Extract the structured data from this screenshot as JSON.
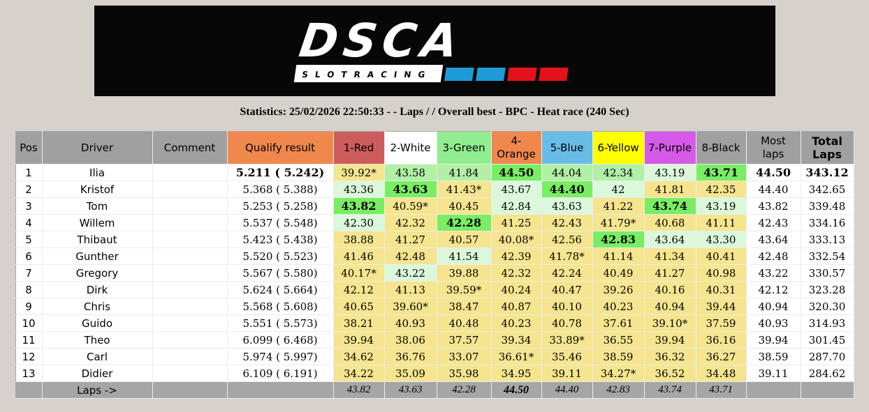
{
  "banner": {
    "logo_text": "DSCA",
    "logo_subtext": "SLOTRACING",
    "accent_blocks": [
      "#1e9cd7",
      "#1e9cd7",
      "#e31119",
      "#e31119"
    ]
  },
  "statistics_line": "Statistics: 25/02/2026 22:50:33 - - Laps / / Overall best - BPC - Heat race (240 Sec)",
  "colors": {
    "k": "#f5e58f",
    "p": "#dcf8da",
    "m": "#b2f0a6",
    "g": "#79ee63",
    "header_gray": "#a0a0a0",
    "footer_gray": "#a6a6a6",
    "qualify_orange": "#f0884e"
  },
  "table": {
    "static_headers": {
      "pos": [
        "Pos"
      ],
      "driver": [
        "Driver"
      ],
      "comment": [
        "Comment"
      ],
      "qualify": [
        "Qualify result"
      ],
      "most_laps": [
        "Most",
        "laps"
      ],
      "total_laps": [
        "Total",
        "Laps"
      ]
    },
    "heat_columns": [
      {
        "label_lines": [
          "1-Red"
        ],
        "color": "#cd5c5c"
      },
      {
        "label_lines": [
          "2-White"
        ],
        "color": "#ffffff"
      },
      {
        "label_lines": [
          "3-Green"
        ],
        "color": "#90ee90"
      },
      {
        "label_lines": [
          "4-",
          "Orange"
        ],
        "color": "#f0884e"
      },
      {
        "label_lines": [
          "5-Blue"
        ],
        "color": "#68bde8"
      },
      {
        "label_lines": [
          "6-Yellow"
        ],
        "color": "#ffff00"
      },
      {
        "label_lines": [
          "7-Purple"
        ],
        "color": "#d65ae8"
      },
      {
        "label_lines": [
          "8-Black"
        ],
        "color": "#a0a0a0"
      }
    ],
    "rows": [
      {
        "pos": "1",
        "driver": "Ilia",
        "comment": "",
        "qualify": "5.211 ( 5.242)",
        "bold": true,
        "heats": [
          {
            "v": "39.92*",
            "c": "k"
          },
          {
            "v": "43.58",
            "c": "m"
          },
          {
            "v": "41.84",
            "c": "m"
          },
          {
            "v": "44.50",
            "c": "g"
          },
          {
            "v": "44.04",
            "c": "m"
          },
          {
            "v": "42.34",
            "c": "m"
          },
          {
            "v": "43.19",
            "c": "p"
          },
          {
            "v": "43.71",
            "c": "g"
          }
        ],
        "most": "44.50",
        "total": "343.12"
      },
      {
        "pos": "2",
        "driver": "Kristof",
        "comment": "",
        "qualify": "5.368 ( 5.388)",
        "bold": false,
        "heats": [
          {
            "v": "43.36",
            "c": "p"
          },
          {
            "v": "43.63",
            "c": "g"
          },
          {
            "v": "41.43*",
            "c": "k"
          },
          {
            "v": "43.67",
            "c": "p"
          },
          {
            "v": "44.40",
            "c": "g"
          },
          {
            "v": "42",
            "c": "p"
          },
          {
            "v": "41.81",
            "c": "k"
          },
          {
            "v": "42.35",
            "c": "k"
          }
        ],
        "most": "44.40",
        "total": "342.65"
      },
      {
        "pos": "3",
        "driver": "Tom",
        "comment": "",
        "qualify": "5.253 ( 5.258)",
        "bold": false,
        "heats": [
          {
            "v": "43.82",
            "c": "g"
          },
          {
            "v": "40.59*",
            "c": "k"
          },
          {
            "v": "40.45",
            "c": "k"
          },
          {
            "v": "42.84",
            "c": "p"
          },
          {
            "v": "43.63",
            "c": "p"
          },
          {
            "v": "41.22",
            "c": "k"
          },
          {
            "v": "43.74",
            "c": "g"
          },
          {
            "v": "43.19",
            "c": "p"
          }
        ],
        "most": "43.82",
        "total": "339.48"
      },
      {
        "pos": "4",
        "driver": "Willem",
        "comment": "",
        "qualify": "5.537 ( 5.548)",
        "bold": false,
        "heats": [
          {
            "v": "42.30",
            "c": "p"
          },
          {
            "v": "42.32",
            "c": "k"
          },
          {
            "v": "42.28",
            "c": "g"
          },
          {
            "v": "41.25",
            "c": "k"
          },
          {
            "v": "42.43",
            "c": "k"
          },
          {
            "v": "41.79*",
            "c": "k"
          },
          {
            "v": "40.68",
            "c": "k"
          },
          {
            "v": "41.11",
            "c": "k"
          }
        ],
        "most": "42.43",
        "total": "334.16"
      },
      {
        "pos": "5",
        "driver": "Thibaut",
        "comment": "",
        "qualify": "5.423 ( 5.438)",
        "bold": false,
        "heats": [
          {
            "v": "38.88",
            "c": "k"
          },
          {
            "v": "41.27",
            "c": "k"
          },
          {
            "v": "40.57",
            "c": "k"
          },
          {
            "v": "40.08*",
            "c": "k"
          },
          {
            "v": "42.56",
            "c": "k"
          },
          {
            "v": "42.83",
            "c": "g"
          },
          {
            "v": "43.64",
            "c": "p"
          },
          {
            "v": "43.30",
            "c": "p"
          }
        ],
        "most": "43.64",
        "total": "333.13"
      },
      {
        "pos": "6",
        "driver": "Gunther",
        "comment": "",
        "qualify": "5.520 ( 5.523)",
        "bold": false,
        "heats": [
          {
            "v": "41.46",
            "c": "k"
          },
          {
            "v": "42.48",
            "c": "k"
          },
          {
            "v": "41.54",
            "c": "p"
          },
          {
            "v": "42.39",
            "c": "k"
          },
          {
            "v": "41.78*",
            "c": "k"
          },
          {
            "v": "41.14",
            "c": "k"
          },
          {
            "v": "41.34",
            "c": "k"
          },
          {
            "v": "40.41",
            "c": "k"
          }
        ],
        "most": "42.48",
        "total": "332.54"
      },
      {
        "pos": "7",
        "driver": "Gregory",
        "comment": "",
        "qualify": "5.567 ( 5.580)",
        "bold": false,
        "heats": [
          {
            "v": "40.17*",
            "c": "k"
          },
          {
            "v": "43.22",
            "c": "p"
          },
          {
            "v": "39.88",
            "c": "k"
          },
          {
            "v": "42.32",
            "c": "k"
          },
          {
            "v": "42.24",
            "c": "k"
          },
          {
            "v": "40.49",
            "c": "k"
          },
          {
            "v": "41.27",
            "c": "k"
          },
          {
            "v": "40.98",
            "c": "k"
          }
        ],
        "most": "43.22",
        "total": "330.57"
      },
      {
        "pos": "8",
        "driver": "Dirk",
        "comment": "",
        "qualify": "5.624 ( 5.664)",
        "bold": false,
        "heats": [
          {
            "v": "42.12",
            "c": "k"
          },
          {
            "v": "41.13",
            "c": "k"
          },
          {
            "v": "39.59*",
            "c": "k"
          },
          {
            "v": "40.24",
            "c": "k"
          },
          {
            "v": "40.47",
            "c": "k"
          },
          {
            "v": "39.26",
            "c": "k"
          },
          {
            "v": "40.16",
            "c": "k"
          },
          {
            "v": "40.31",
            "c": "k"
          }
        ],
        "most": "42.12",
        "total": "323.28"
      },
      {
        "pos": "9",
        "driver": "Chris",
        "comment": "",
        "qualify": "5.568 ( 5.608)",
        "bold": false,
        "heats": [
          {
            "v": "40.65",
            "c": "k"
          },
          {
            "v": "39.60*",
            "c": "k"
          },
          {
            "v": "38.47",
            "c": "k"
          },
          {
            "v": "40.87",
            "c": "k"
          },
          {
            "v": "40.10",
            "c": "k"
          },
          {
            "v": "40.23",
            "c": "k"
          },
          {
            "v": "40.94",
            "c": "k"
          },
          {
            "v": "39.44",
            "c": "k"
          }
        ],
        "most": "40.94",
        "total": "320.30"
      },
      {
        "pos": "10",
        "driver": "Guido",
        "comment": "",
        "qualify": "5.551 ( 5.573)",
        "bold": false,
        "heats": [
          {
            "v": "38.21",
            "c": "k"
          },
          {
            "v": "40.93",
            "c": "k"
          },
          {
            "v": "40.48",
            "c": "k"
          },
          {
            "v": "40.23",
            "c": "k"
          },
          {
            "v": "40.78",
            "c": "k"
          },
          {
            "v": "37.61",
            "c": "k"
          },
          {
            "v": "39.10*",
            "c": "k"
          },
          {
            "v": "37.59",
            "c": "k"
          }
        ],
        "most": "40.93",
        "total": "314.93"
      },
      {
        "pos": "11",
        "driver": "Theo",
        "comment": "",
        "qualify": "6.099 ( 6.468)",
        "bold": false,
        "heats": [
          {
            "v": "39.94",
            "c": "k"
          },
          {
            "v": "38.06",
            "c": "k"
          },
          {
            "v": "37.57",
            "c": "k"
          },
          {
            "v": "39.34",
            "c": "k"
          },
          {
            "v": "33.89*",
            "c": "k"
          },
          {
            "v": "36.55",
            "c": "k"
          },
          {
            "v": "39.94",
            "c": "k"
          },
          {
            "v": "36.16",
            "c": "k"
          }
        ],
        "most": "39.94",
        "total": "301.45"
      },
      {
        "pos": "12",
        "driver": "Carl",
        "comment": "",
        "qualify": "5.974 ( 5.997)",
        "bold": false,
        "heats": [
          {
            "v": "34.62",
            "c": "k"
          },
          {
            "v": "36.76",
            "c": "k"
          },
          {
            "v": "33.07",
            "c": "k"
          },
          {
            "v": "36.61*",
            "c": "k"
          },
          {
            "v": "35.46",
            "c": "k"
          },
          {
            "v": "38.59",
            "c": "k"
          },
          {
            "v": "36.32",
            "c": "k"
          },
          {
            "v": "36.27",
            "c": "k"
          }
        ],
        "most": "38.59",
        "total": "287.70"
      },
      {
        "pos": "13",
        "driver": "Didier",
        "comment": "",
        "qualify": "6.109 ( 6.191)",
        "bold": false,
        "heats": [
          {
            "v": "34.22",
            "c": "k"
          },
          {
            "v": "35.09",
            "c": "k"
          },
          {
            "v": "35.98",
            "c": "k"
          },
          {
            "v": "34.95",
            "c": "k"
          },
          {
            "v": "39.11",
            "c": "k"
          },
          {
            "v": "34.27*",
            "c": "k"
          },
          {
            "v": "36.52",
            "c": "k"
          },
          {
            "v": "34.48",
            "c": "k"
          }
        ],
        "most": "39.11",
        "total": "284.62"
      }
    ],
    "footer": {
      "label": "Laps ->",
      "values": [
        {
          "v": "43.82",
          "bold": false
        },
        {
          "v": "43.63",
          "bold": false
        },
        {
          "v": "42.28",
          "bold": false
        },
        {
          "v": "44.50",
          "bold": true
        },
        {
          "v": "44.40",
          "bold": false
        },
        {
          "v": "42.83",
          "bold": false
        },
        {
          "v": "43.74",
          "bold": false
        },
        {
          "v": "43.71",
          "bold": false
        }
      ]
    }
  }
}
